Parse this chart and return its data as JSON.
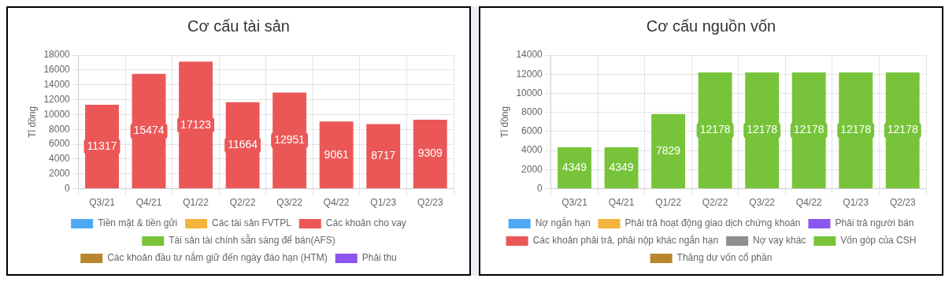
{
  "chart_data": [
    {
      "type": "bar",
      "title": "Cơ cấu tài sản",
      "ylabel": "Tỉ đồng",
      "categories": [
        "Q3/21",
        "Q4/21",
        "Q1/22",
        "Q2/22",
        "Q3/22",
        "Q4/22",
        "Q1/23",
        "Q2/23"
      ],
      "series": [
        {
          "name": "Tiền mặt & tiền gửi",
          "color": "#4ea9f5",
          "values": [
            null,
            null,
            null,
            null,
            null,
            null,
            null,
            null
          ]
        },
        {
          "name": "Các tài sản FVTPL",
          "color": "#f2b43c",
          "values": [
            null,
            null,
            null,
            null,
            null,
            null,
            null,
            null
          ]
        },
        {
          "name": "Các khoản cho vay",
          "color": "#eb5757",
          "values": [
            11317,
            15474,
            17123,
            11664,
            12951,
            9061,
            8717,
            9309
          ]
        },
        {
          "name": "Tài sản tài chính sẵn sàng để bán(AFS)",
          "color": "#77c43a",
          "values": [
            null,
            null,
            null,
            null,
            null,
            null,
            null,
            null
          ]
        },
        {
          "name": "Các khoản đầu tư nắm giữ đến ngày đáo hạn (HTM)",
          "color": "#b8862e",
          "values": [
            null,
            null,
            null,
            null,
            null,
            null,
            null,
            null
          ]
        },
        {
          "name": "Phải thu",
          "color": "#8b55f0",
          "values": [
            null,
            null,
            null,
            null,
            null,
            null,
            null,
            null
          ]
        }
      ],
      "ylim": [
        0,
        18000
      ],
      "yticks": [
        0,
        2000,
        4000,
        6000,
        8000,
        10000,
        12000,
        14000,
        16000,
        18000
      ],
      "grid": true,
      "legend": "bottom",
      "data_labels": true
    },
    {
      "type": "bar",
      "title": "Cơ cấu nguồn vốn",
      "ylabel": "Tỉ đồng",
      "categories": [
        "Q3/21",
        "Q4/21",
        "Q1/22",
        "Q2/22",
        "Q3/22",
        "Q4/22",
        "Q1/23",
        "Q2/23"
      ],
      "series": [
        {
          "name": "Nợ ngắn hạn",
          "color": "#4ea9f5",
          "values": [
            null,
            null,
            null,
            null,
            null,
            null,
            null,
            null
          ]
        },
        {
          "name": "Phải trả hoạt động giao dịch chứng khoán",
          "color": "#f2b43c",
          "values": [
            null,
            null,
            null,
            null,
            null,
            null,
            null,
            null
          ]
        },
        {
          "name": "Phải trả người bán",
          "color": "#8b55f0",
          "values": [
            null,
            null,
            null,
            null,
            null,
            null,
            null,
            null
          ]
        },
        {
          "name": "Các khoản phải trả, phải nộp khác ngắn hạn",
          "color": "#eb5757",
          "values": [
            null,
            null,
            null,
            null,
            null,
            null,
            null,
            null
          ]
        },
        {
          "name": "Nợ vay khác",
          "color": "#8e8e93",
          "values": [
            null,
            null,
            null,
            null,
            null,
            null,
            null,
            null
          ]
        },
        {
          "name": "Vốn góp của CSH",
          "color": "#77c43a",
          "values": [
            4349,
            4349,
            7829,
            12178,
            12178,
            12178,
            12178,
            12178
          ]
        },
        {
          "name": "Thăng dư vốn cổ phần",
          "color": "#b8862e",
          "values": [
            null,
            null,
            null,
            null,
            null,
            null,
            null,
            null
          ]
        }
      ],
      "ylim": [
        0,
        14000
      ],
      "yticks": [
        0,
        2000,
        4000,
        6000,
        8000,
        10000,
        12000,
        14000
      ],
      "grid": true,
      "legend": "bottom",
      "data_labels": true
    }
  ]
}
